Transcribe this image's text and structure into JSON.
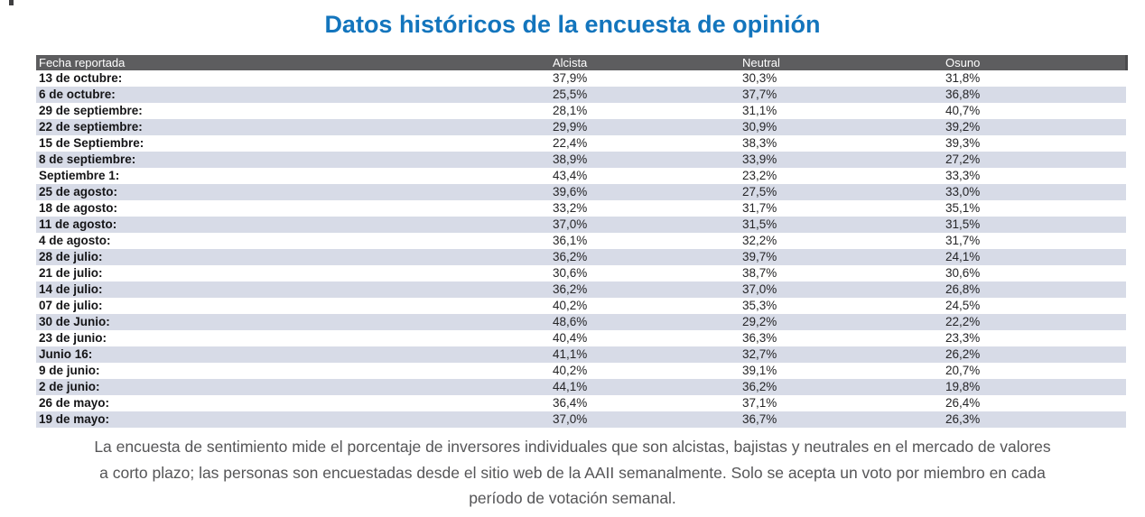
{
  "title": "Datos históricos de la encuesta de opinión",
  "table": {
    "columns": [
      "Fecha reportada",
      "Alcista",
      "Neutral",
      "Osuno"
    ],
    "rows": [
      {
        "fecha": "13 de octubre:",
        "alcista": "37,9%",
        "neutral": "30,3%",
        "osuno": "31,8%"
      },
      {
        "fecha": "6 de octubre:",
        "alcista": "25,5%",
        "neutral": "37,7%",
        "osuno": "36,8%"
      },
      {
        "fecha": "29 de septiembre:",
        "alcista": "28,1%",
        "neutral": "31,1%",
        "osuno": "40,7%"
      },
      {
        "fecha": "22 de septiembre:",
        "alcista": "29,9%",
        "neutral": "30,9%",
        "osuno": "39,2%"
      },
      {
        "fecha": "15 de Septiembre:",
        "alcista": "22,4%",
        "neutral": "38,3%",
        "osuno": "39,3%"
      },
      {
        "fecha": "8 de septiembre:",
        "alcista": "38,9%",
        "neutral": "33,9%",
        "osuno": "27,2%"
      },
      {
        "fecha": "Septiembre 1:",
        "alcista": "43,4%",
        "neutral": "23,2%",
        "osuno": "33,3%"
      },
      {
        "fecha": "25 de agosto:",
        "alcista": "39,6%",
        "neutral": "27,5%",
        "osuno": "33,0%"
      },
      {
        "fecha": "18 de agosto:",
        "alcista": "33,2%",
        "neutral": "31,7%",
        "osuno": "35,1%"
      },
      {
        "fecha": "11 de agosto:",
        "alcista": "37,0%",
        "neutral": "31,5%",
        "osuno": "31,5%"
      },
      {
        "fecha": "4 de agosto:",
        "alcista": "36,1%",
        "neutral": "32,2%",
        "osuno": "31,7%"
      },
      {
        "fecha": "28 de julio:",
        "alcista": "36,2%",
        "neutral": "39,7%",
        "osuno": "24,1%"
      },
      {
        "fecha": "21 de julio:",
        "alcista": "30,6%",
        "neutral": "38,7%",
        "osuno": "30,6%"
      },
      {
        "fecha": "14 de julio:",
        "alcista": "36,2%",
        "neutral": "37,0%",
        "osuno": "26,8%"
      },
      {
        "fecha": "07 de julio:",
        "alcista": "40,2%",
        "neutral": "35,3%",
        "osuno": "24,5%"
      },
      {
        "fecha": "30 de Junio:",
        "alcista": "48,6%",
        "neutral": "29,2%",
        "osuno": "22,2%"
      },
      {
        "fecha": "23 de junio:",
        "alcista": "40,4%",
        "neutral": "36,3%",
        "osuno": "23,3%"
      },
      {
        "fecha": "Junio 16:",
        "alcista": "41,1%",
        "neutral": "32,7%",
        "osuno": "26,2%"
      },
      {
        "fecha": "9 de junio:",
        "alcista": "40,2%",
        "neutral": "39,1%",
        "osuno": "20,7%"
      },
      {
        "fecha": "2 de junio:",
        "alcista": "44,1%",
        "neutral": "36,2%",
        "osuno": "19,8%"
      },
      {
        "fecha": "26 de mayo:",
        "alcista": "36,4%",
        "neutral": "37,1%",
        "osuno": "26,4%"
      },
      {
        "fecha": "19 de mayo:",
        "alcista": "37,0%",
        "neutral": "36,7%",
        "osuno": "26,3%"
      }
    ]
  },
  "footnote": "La encuesta de sentimiento mide el porcentaje de inversores individuales que son alcistas, bajistas y neutrales en el mercado de valores a corto plazo; las personas son encuestadas desde el sitio web de la AAII semanalmente. Solo se acepta un voto por miembro en cada período de votación semanal.",
  "colors": {
    "title_blue": "#1375bd",
    "header_gray": "#5d5d5f",
    "row_stripe": "#d7dbe7",
    "footnote_gray": "#555557"
  },
  "chart_data": {
    "type": "table",
    "title": "Datos históricos de la encuesta de opinión",
    "columns": [
      "Fecha reportada",
      "Alcista",
      "Neutral",
      "Osuno"
    ],
    "categories": [
      "13 de octubre",
      "6 de octubre",
      "29 de septiembre",
      "22 de septiembre",
      "15 de Septiembre",
      "8 de septiembre",
      "Septiembre 1",
      "25 de agosto",
      "18 de agosto",
      "11 de agosto",
      "4 de agosto",
      "28 de julio",
      "21 de julio",
      "14 de julio",
      "07 de julio",
      "30 de Junio",
      "23 de junio",
      "Junio 16",
      "9 de junio",
      "2 de junio",
      "26 de mayo",
      "19 de mayo"
    ],
    "series": [
      {
        "name": "Alcista",
        "values": [
          37.9,
          25.5,
          28.1,
          29.9,
          22.4,
          38.9,
          43.4,
          39.6,
          33.2,
          37.0,
          36.1,
          36.2,
          30.6,
          36.2,
          40.2,
          48.6,
          40.4,
          41.1,
          40.2,
          44.1,
          36.4,
          37.0
        ]
      },
      {
        "name": "Neutral",
        "values": [
          30.3,
          37.7,
          31.1,
          30.9,
          38.3,
          33.9,
          23.2,
          27.5,
          31.7,
          31.5,
          32.2,
          39.7,
          38.7,
          37.0,
          35.3,
          29.2,
          36.3,
          32.7,
          39.1,
          36.2,
          37.1,
          36.7
        ]
      },
      {
        "name": "Osuno",
        "values": [
          31.8,
          36.8,
          40.7,
          39.2,
          39.3,
          27.2,
          33.3,
          33.0,
          35.1,
          31.5,
          31.7,
          24.1,
          30.6,
          26.8,
          24.5,
          22.2,
          23.3,
          26.2,
          20.7,
          19.8,
          26.4,
          26.3
        ]
      }
    ],
    "units": "percent",
    "value_format": "comma-decimal",
    "layout": "striped rows, dark header bar, left-aligned columns"
  }
}
